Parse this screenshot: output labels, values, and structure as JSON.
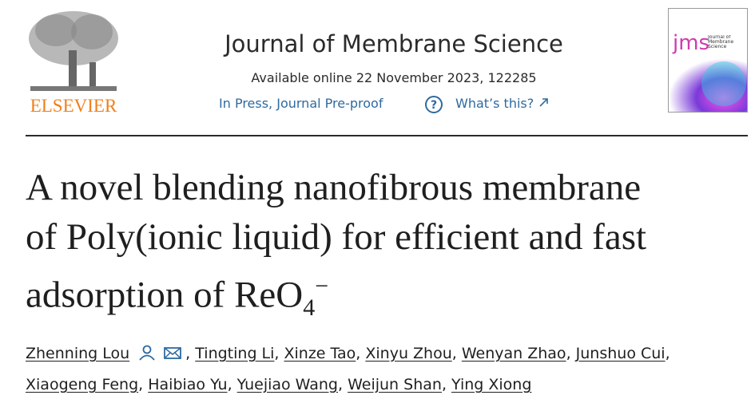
{
  "header": {
    "publisher": "ELSEVIER",
    "journal": "Journal of Membrane Science",
    "availability": "Available online 22 November 2023, 122285",
    "status": "In Press, Journal Pre-proof",
    "help": "What’s this?",
    "cover": {
      "abbr": "jms",
      "journal": "Journal of Membrane Science"
    }
  },
  "title": {
    "lines": [
      "A novel blending nanofibrous membrane",
      "of Poly(ionic liquid) for efficient and fast",
      "adsorption of ReO"
    ],
    "subscript": "4",
    "superscript": "−"
  },
  "authors": {
    "names": [
      "Zhenning Lou",
      "Tingting Li",
      "Xinze Tao",
      "Xinyu Zhou",
      "Wenyan Zhao",
      "Junshuo Cui",
      "Xiaogeng Feng",
      "Haibiao Yu",
      "Yuejiao Wang",
      "Weijun Shan",
      "Ying Xiong"
    ],
    "separator": ","
  }
}
